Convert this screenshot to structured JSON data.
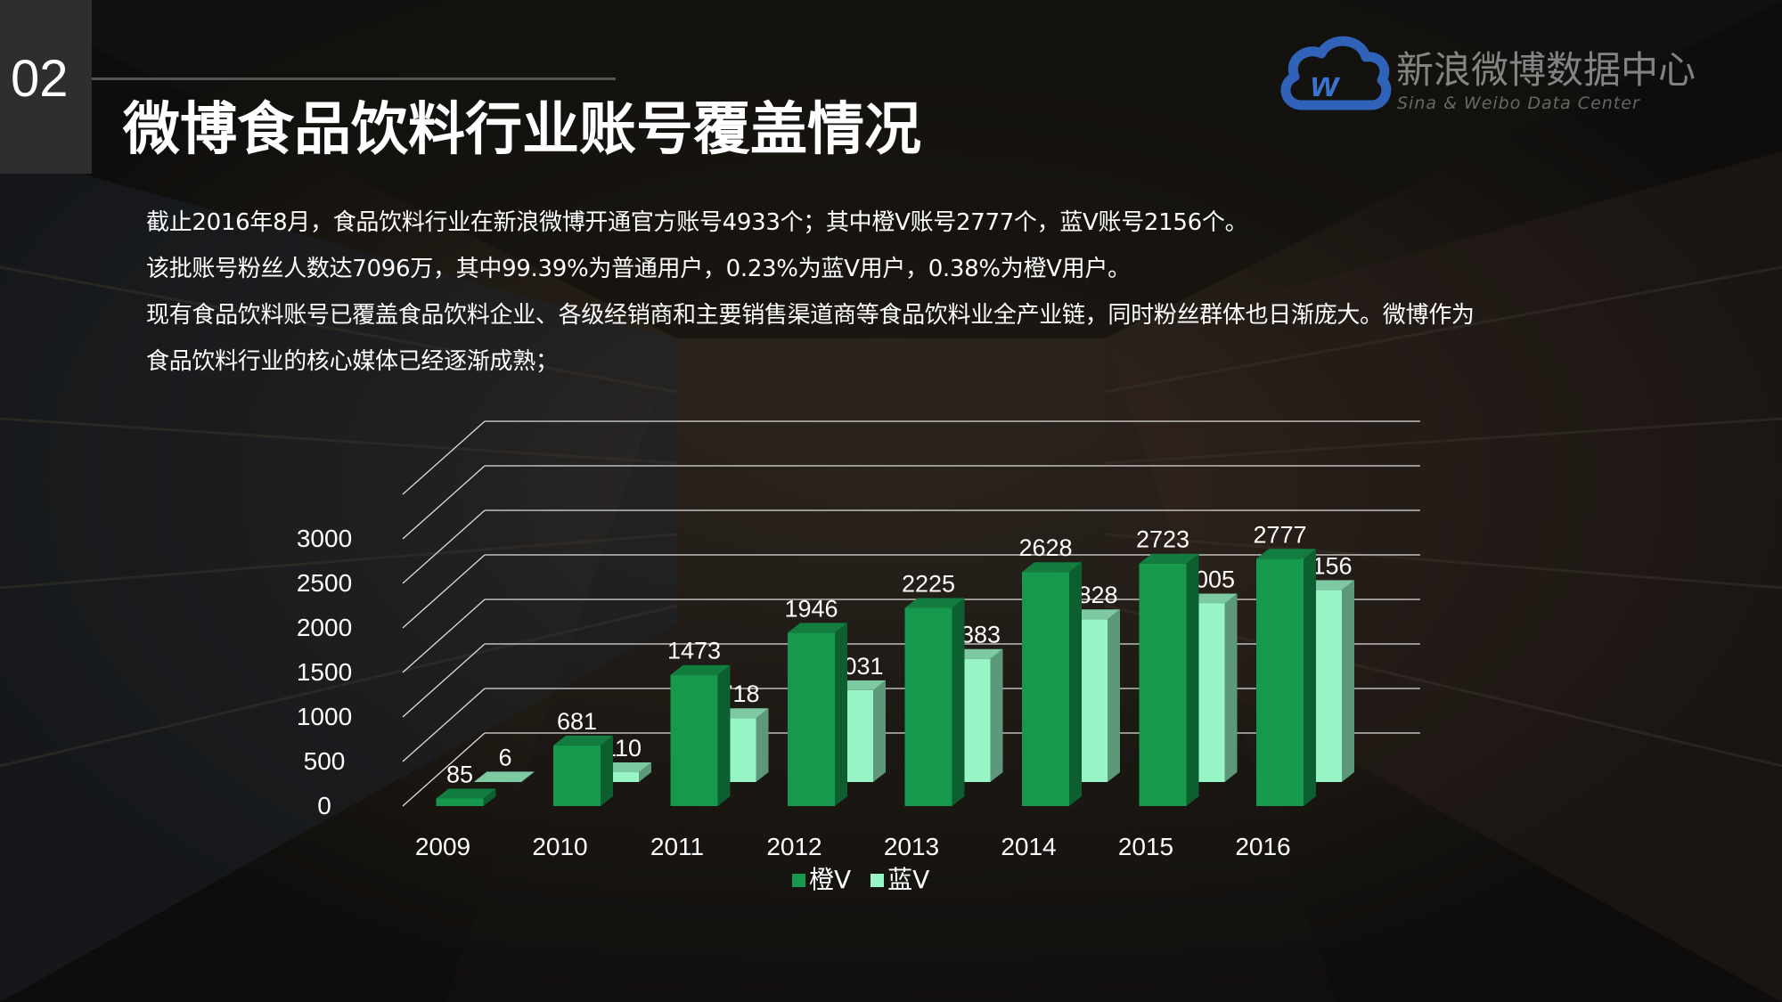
{
  "section_number": "02",
  "page_title": "微博食品饮料行业账号覆盖情况",
  "logo": {
    "name_cn": "新浪微博数据中心",
    "name_en": "Sina & Weibo Data Center",
    "icon": "weibo-cloud-logo-icon"
  },
  "paragraphs": [
    "截止2016年8月，食品饮料行业在新浪微博开通官方账号4933个；其中橙V账号2777个，蓝V账号2156个。",
    "该批账号粉丝人数达7096万，其中99.39%为普通用户，0.23%为蓝V用户，0.38%为橙V用户。",
    "现有食品饮料账号已覆盖食品饮料企业、各级经销商和主要销售渠道商等食品饮料业全产业链，同时粉丝群体也日渐庞大。微博作为",
    "食品饮料行业的核心媒体已经逐渐成熟；"
  ],
  "colors": {
    "orange_v": "#16994d",
    "blue_v": "#98f5c6",
    "text": "#ffffff"
  },
  "chart_data": {
    "type": "bar",
    "style": "3d-clustered-column",
    "categories": [
      "2009",
      "2010",
      "2011",
      "2012",
      "2013",
      "2014",
      "2015",
      "2016"
    ],
    "series": [
      {
        "name": "橙V",
        "values": [
          85,
          681,
          1473,
          1946,
          2225,
          2628,
          2723,
          2777
        ]
      },
      {
        "name": "蓝V",
        "values": [
          6,
          110,
          718,
          1031,
          1383,
          1828,
          2005,
          2156
        ]
      }
    ],
    "y_ticks": [
      "0",
      "500",
      "1000",
      "1500",
      "2000",
      "2500",
      "3000"
    ],
    "ylim": [
      0,
      3500
    ],
    "grid": true,
    "legend_position": "bottom"
  }
}
